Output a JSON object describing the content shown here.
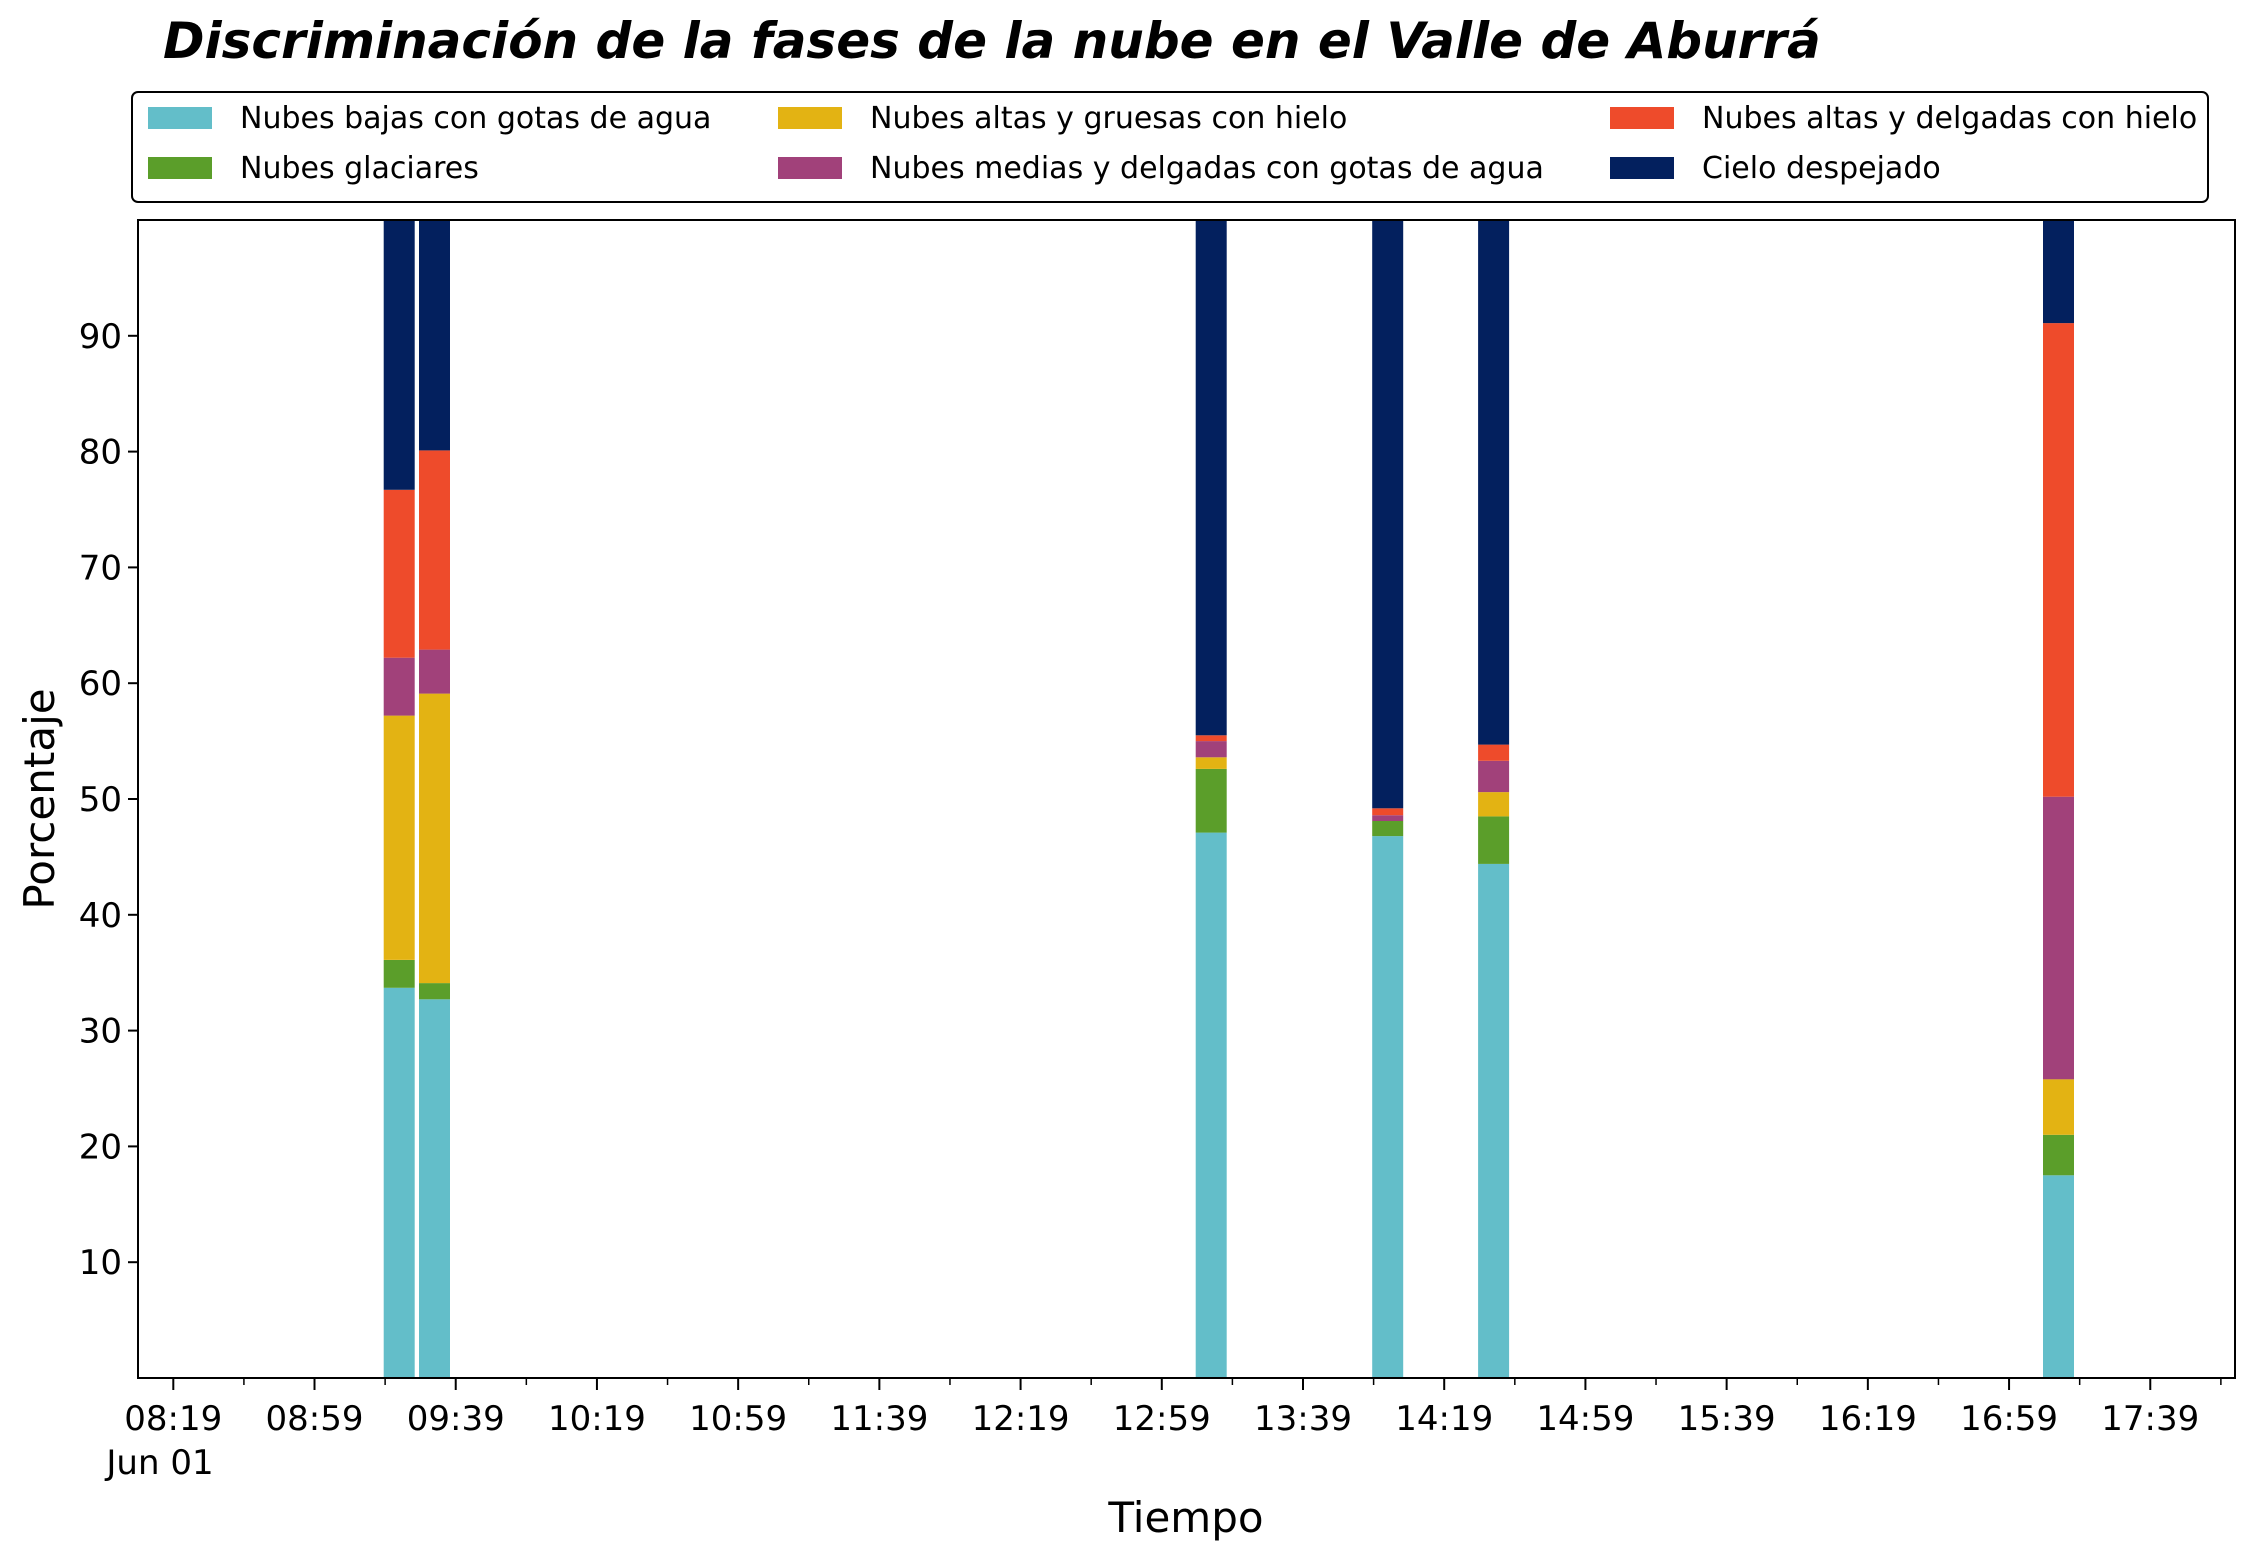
{
  "chart_data": {
    "type": "bar",
    "stacked": true,
    "title": "Discriminación de la fases de la nube en el Valle de Aburrá",
    "xlabel": "Tiempo",
    "ylabel": "Porcentaje",
    "x_tick_labels": [
      "08:19",
      "08:59",
      "09:39",
      "10:19",
      "10:59",
      "11:39",
      "12:19",
      "12:59",
      "13:39",
      "14:19",
      "14:59",
      "15:39",
      "16:19",
      "16:59",
      "17:39"
    ],
    "x_date_label": "Jun 01",
    "x_range": [
      "08:09",
      "18:03"
    ],
    "ylim": [
      0,
      100
    ],
    "y_ticks": [
      10,
      20,
      30,
      40,
      50,
      60,
      70,
      80,
      90
    ],
    "grid": false,
    "legend_position": "top",
    "x": [
      "09:23",
      "09:33",
      "13:13",
      "14:03",
      "14:33",
      "17:13"
    ],
    "series": [
      {
        "name": "Nubes bajas con gotas de agua",
        "color": "#63bec9",
        "values": [
          33.7,
          32.7,
          47.1,
          46.8,
          44.4,
          17.5
        ]
      },
      {
        "name": "Nubes glaciares",
        "color": "#5b9e2a",
        "values": [
          2.4,
          1.4,
          5.5,
          1.3,
          4.1,
          3.5
        ]
      },
      {
        "name": "Nubes altas y gruesas con hielo",
        "color": "#e3b313",
        "values": [
          21.1,
          25.0,
          1.0,
          0.0,
          2.1,
          4.8
        ]
      },
      {
        "name": "Nubes medias y delgadas con gotas de agua",
        "color": "#a1417a",
        "values": [
          5.0,
          3.8,
          1.4,
          0.5,
          2.7,
          24.4
        ]
      },
      {
        "name": "Nubes altas y delgadas con hielo",
        "color": "#ee4b2b",
        "values": [
          14.5,
          17.2,
          0.5,
          0.6,
          1.4,
          40.9
        ]
      },
      {
        "name": "Cielo despejado",
        "color": "#03205e",
        "values": [
          23.3,
          19.9,
          44.5,
          50.8,
          45.3,
          8.9
        ]
      }
    ]
  }
}
